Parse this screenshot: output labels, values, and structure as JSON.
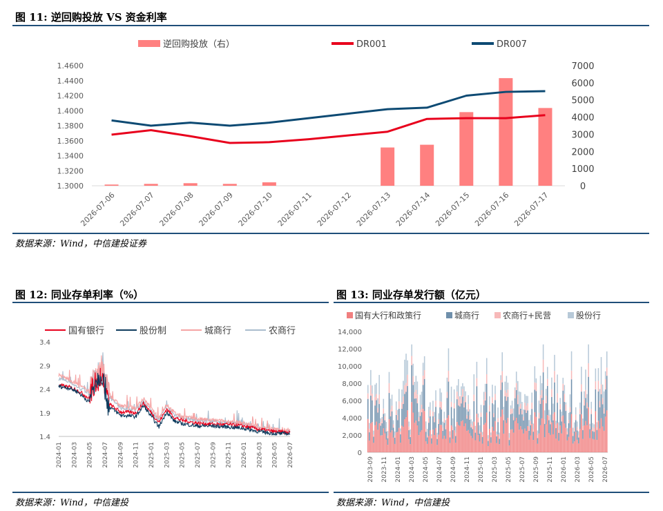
{
  "fig11": {
    "title": "图 11: 逆回购投放 VS 资金利率",
    "source": "数据来源：Wind，中信建投证券"
  },
  "fig12": {
    "title": "图 12: 同业存单利率（%）",
    "source": "数据来源：Wind，中信建投"
  },
  "fig13": {
    "title": "图 13: 同业存单发行额（亿元）",
    "source": "数据来源：Wind，中信建投"
  },
  "chart_data": [
    {
      "id": "fig11",
      "type": "bar+line",
      "categories": [
        "2026-07-06",
        "2026-07-07",
        "2026-07-08",
        "2026-07-09",
        "2026-07-10",
        "2026-07-11",
        "2026-07-12",
        "2026-07-13",
        "2026-07-14",
        "2026-07-15",
        "2026-07-16",
        "2026-07-17"
      ],
      "series": [
        {
          "name": "逆回购投放（右）",
          "kind": "bar",
          "axis": "right",
          "color": "#ff8080",
          "values": [
            70,
            110,
            150,
            110,
            200,
            0,
            0,
            2230,
            2390,
            4290,
            6270,
            4530
          ]
        },
        {
          "name": "DR001",
          "kind": "line",
          "axis": "left",
          "color": "#e8001c",
          "values": [
            1.368,
            1.374,
            1.366,
            1.357,
            1.358,
            1.362,
            1.367,
            1.372,
            1.389,
            1.39,
            1.39,
            1.394
          ]
        },
        {
          "name": "DR007",
          "kind": "line",
          "axis": "left",
          "color": "#0d4a73",
          "values": [
            1.387,
            1.38,
            1.384,
            1.38,
            1.384,
            1.39,
            1.396,
            1.402,
            1.404,
            1.42,
            1.425,
            1.426
          ]
        }
      ],
      "yleft": {
        "min": 1.3,
        "max": 1.46,
        "ticks": [
          "1.3000",
          "1.3200",
          "1.3400",
          "1.3600",
          "1.3800",
          "1.4000",
          "1.4200",
          "1.4400",
          "1.4600"
        ]
      },
      "yright": {
        "min": 0,
        "max": 7000,
        "ticks": [
          "0",
          "1000",
          "2000",
          "3000",
          "4000",
          "5000",
          "6000",
          "7000"
        ]
      },
      "legend_position": "top"
    },
    {
      "id": "fig12",
      "type": "line",
      "x_ticks": [
        "2024-01",
        "2024-03",
        "2024-05",
        "2024-07",
        "2024-09",
        "2024-11",
        "2025-01",
        "2025-03",
        "2025-05",
        "2025-07",
        "2025-09",
        "2025-11",
        "2026-01",
        "2026-03",
        "2026-05",
        "2026-07"
      ],
      "yticks": [
        "1.4",
        "1.9",
        "2.4",
        "2.9",
        "3.4"
      ],
      "ylim": [
        1.4,
        3.4
      ],
      "series": [
        {
          "name": "国有银行",
          "color": "#e8001c",
          "anchors": [
            [
              0,
              2.48
            ],
            [
              0.7,
              2.44
            ],
            [
              1.2,
              2.38
            ],
            [
              2,
              2.2
            ],
            [
              2.3,
              2.45
            ],
            [
              2.8,
              2.65
            ],
            [
              3.2,
              2.1
            ],
            [
              4,
              1.92
            ],
            [
              5,
              1.9
            ],
            [
              5.5,
              2.1
            ],
            [
              6.5,
              1.7
            ],
            [
              7,
              1.98
            ],
            [
              7.5,
              1.8
            ],
            [
              8,
              1.74
            ],
            [
              9,
              1.68
            ],
            [
              10,
              1.66
            ],
            [
              11,
              1.65
            ],
            [
              12,
              1.62
            ],
            [
              13,
              1.55
            ],
            [
              14,
              1.5
            ],
            [
              15,
              1.48
            ]
          ]
        },
        {
          "name": "股份制",
          "color": "#0d3a5c",
          "anchors": [
            [
              0,
              2.46
            ],
            [
              0.7,
              2.42
            ],
            [
              1.2,
              2.35
            ],
            [
              2,
              2.12
            ],
            [
              2.3,
              2.5
            ],
            [
              2.8,
              2.7
            ],
            [
              3.2,
              2.05
            ],
            [
              4,
              1.85
            ],
            [
              5,
              1.82
            ],
            [
              5.5,
              2.05
            ],
            [
              6.5,
              1.6
            ],
            [
              7,
              1.92
            ],
            [
              7.5,
              1.72
            ],
            [
              8,
              1.67
            ],
            [
              9,
              1.62
            ],
            [
              10,
              1.62
            ],
            [
              11,
              1.6
            ],
            [
              12,
              1.57
            ],
            [
              13,
              1.5
            ],
            [
              14,
              1.46
            ],
            [
              15,
              1.46
            ]
          ]
        },
        {
          "name": "城商行",
          "color": "#f5a3a3",
          "anchors": [
            [
              0,
              2.7
            ],
            [
              0.7,
              2.6
            ],
            [
              1.2,
              2.5
            ],
            [
              2,
              2.35
            ],
            [
              2.3,
              2.6
            ],
            [
              2.8,
              2.85
            ],
            [
              3.2,
              2.3
            ],
            [
              4,
              2.05
            ],
            [
              5,
              2.0
            ],
            [
              5.5,
              2.2
            ],
            [
              6.5,
              1.78
            ],
            [
              7,
              2.08
            ],
            [
              7.5,
              1.9
            ],
            [
              8,
              1.82
            ],
            [
              9,
              1.77
            ],
            [
              10,
              1.74
            ],
            [
              11,
              1.72
            ],
            [
              12,
              1.68
            ],
            [
              13,
              1.6
            ],
            [
              14,
              1.55
            ],
            [
              15,
              1.52
            ]
          ]
        },
        {
          "name": "农商行",
          "color": "#a9bccd",
          "anchors": [
            [
              0,
              2.62
            ],
            [
              0.7,
              2.55
            ],
            [
              1.2,
              2.45
            ],
            [
              2,
              2.3
            ],
            [
              2.3,
              2.55
            ],
            [
              2.8,
              2.78
            ],
            [
              3.2,
              2.25
            ],
            [
              4,
              2.0
            ],
            [
              5,
              1.96
            ],
            [
              5.5,
              2.15
            ],
            [
              6.5,
              1.74
            ],
            [
              7,
              2.04
            ],
            [
              7.5,
              1.86
            ],
            [
              8,
              1.8
            ],
            [
              9,
              1.74
            ],
            [
              10,
              1.72
            ],
            [
              11,
              1.7
            ],
            [
              12,
              1.66
            ],
            [
              13,
              1.58
            ],
            [
              14,
              1.53
            ],
            [
              15,
              1.5
            ]
          ]
        }
      ],
      "legend_position": "top"
    },
    {
      "id": "fig13",
      "type": "bar",
      "stacked": true,
      "x_ticks": [
        "2023-09",
        "2023-11",
        "2024-01",
        "2024-03",
        "2024-05",
        "2024-07",
        "2024-09",
        "2024-11",
        "2025-01",
        "2025-03",
        "2025-05",
        "2025-07",
        "2025-09",
        "2025-11",
        "2026-01",
        "2026-03",
        "2026-05",
        "2026-07"
      ],
      "yticks": [
        "0",
        "2,000",
        "4,000",
        "6,000",
        "8,000",
        "10,000",
        "12,000",
        "14,000"
      ],
      "ylim": [
        0,
        14000
      ],
      "series": [
        {
          "name": "国有大行和政策行",
          "color": "#f07f7f"
        },
        {
          "name": "城商行",
          "color": "#6f8fab"
        },
        {
          "name": "农商行+民营",
          "color": "#f7b9b9"
        },
        {
          "name": "股份行",
          "color": "#b7c9d8"
        }
      ],
      "total_profile_months": [
        5200,
        4800,
        5600,
        6200,
        5400,
        6000,
        5800,
        5000,
        5300,
        5600,
        6100,
        6500,
        5700,
        6800,
        6000,
        5500,
        7500,
        6200
      ],
      "legend_position": "top"
    }
  ]
}
